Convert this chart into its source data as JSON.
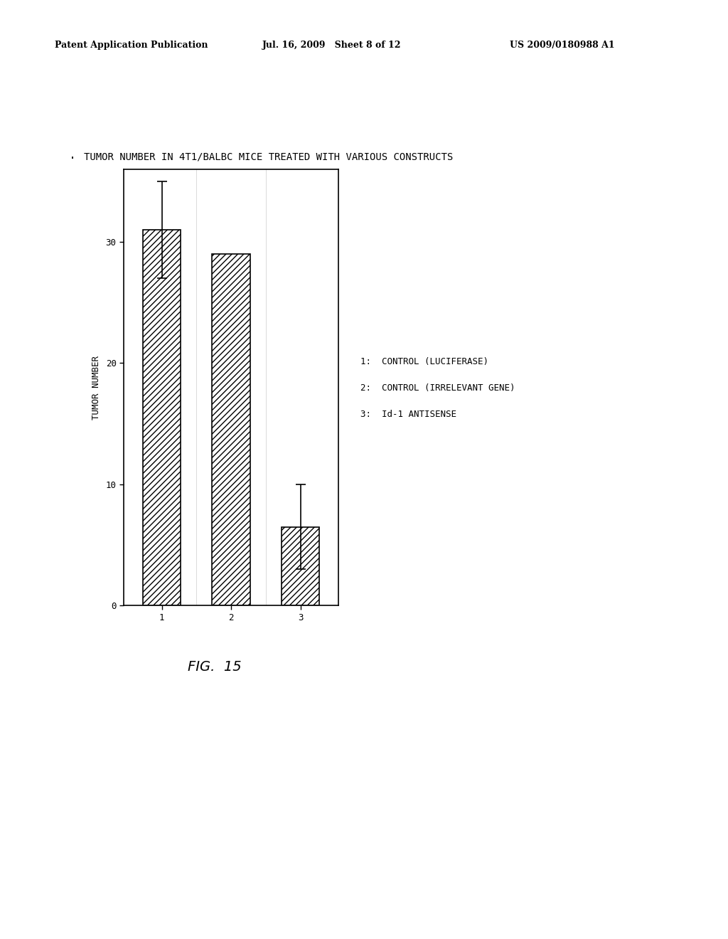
{
  "title": "TUMOR NUMBER IN 4T1/BALBC MICE TREATED WITH VARIOUS CONSTRUCTS",
  "ylabel": "TUMOR NUMBER",
  "xlabel": "",
  "categories": [
    "1",
    "2",
    "3"
  ],
  "values": [
    31.0,
    29.0,
    6.5
  ],
  "error_bars": [
    4.0,
    0.0,
    3.5
  ],
  "error_bar_visible": [
    true,
    false,
    true
  ],
  "error_upper": [
    4.0,
    0.0,
    3.5
  ],
  "ylim": [
    0,
    36
  ],
  "yticks": [
    0,
    10,
    20,
    30
  ],
  "hatch_pattern": "////",
  "bar_color": "white",
  "bar_edgecolor": "black",
  "bar_width": 0.55,
  "legend_lines": [
    "1:  CONTROL (LUCIFERASE)",
    "2:  CONTROL (IRRELEVANT GENE)",
    "3:  Id-1 ANTISENSE"
  ],
  "fig_caption": "FIG.  15",
  "header_left": "Patent Application Publication",
  "header_mid": "Jul. 16, 2009   Sheet 8 of 12",
  "header_right": "US 2009/0180988 A1",
  "background_color": "#ffffff",
  "title_fontsize": 10,
  "axis_fontsize": 9,
  "tick_fontsize": 9,
  "legend_fontsize": 9,
  "caption_fontsize": 14,
  "header_fontsize": 9
}
